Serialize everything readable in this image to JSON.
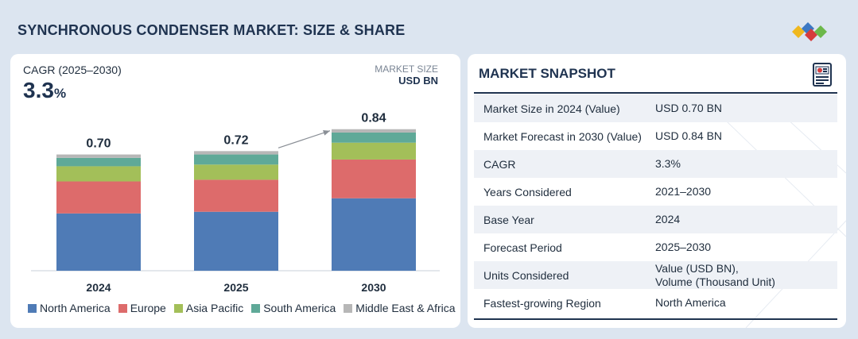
{
  "title": "SYNCHRONOUS CONDENSER MARKET: SIZE & SHARE",
  "cagr": {
    "label": "CAGR (2025–2030)",
    "value": "3.3",
    "unit": "%"
  },
  "market_size": {
    "label": "MARKET SIZE",
    "unit": "USD BN"
  },
  "colors": {
    "north_america": "#4f7bb6",
    "europe": "#dd6b6b",
    "asia_pacific": "#a3bf59",
    "south_america": "#5fa998",
    "middle_east_africa": "#b7b7b7",
    "title": "#1f3350"
  },
  "chart_data": {
    "type": "bar",
    "stacked": true,
    "categories": [
      "2024",
      "2025",
      "2030"
    ],
    "totals": [
      "0.70",
      "0.72",
      "0.84"
    ],
    "series": [
      {
        "name": "North America",
        "color": "#4f7bb6",
        "values": [
          0.34,
          0.35,
          0.43
        ]
      },
      {
        "name": "Europe",
        "color": "#dd6b6b",
        "values": [
          0.19,
          0.19,
          0.23
        ]
      },
      {
        "name": "Asia Pacific",
        "color": "#a3bf59",
        "values": [
          0.09,
          0.09,
          0.1
        ]
      },
      {
        "name": "South America",
        "color": "#5fa998",
        "values": [
          0.05,
          0.06,
          0.06
        ]
      },
      {
        "name": "Middle East & Africa",
        "color": "#b7b7b7",
        "values": [
          0.02,
          0.02,
          0.02
        ]
      }
    ],
    "ylim": [
      0,
      0.9
    ],
    "legend_position": "bottom"
  },
  "snapshot": {
    "title": "MARKET SNAPSHOT",
    "rows": [
      {
        "label": "Market Size in 2024 (Value)",
        "value": "USD 0.70 BN"
      },
      {
        "label": "Market Forecast in 2030 (Value)",
        "value": "USD 0.84 BN"
      },
      {
        "label": "CAGR",
        "value": "3.3%"
      },
      {
        "label": "Years Considered",
        "value": "2021–2030"
      },
      {
        "label": "Base Year",
        "value": "2024"
      },
      {
        "label": "Forecast Period",
        "value": "2025–2030"
      },
      {
        "label": "Units Considered",
        "value": "Value (USD BN),",
        "value2": "Volume (Thousand Unit)"
      },
      {
        "label": "Fastest-growing Region",
        "value": "North America"
      }
    ]
  }
}
